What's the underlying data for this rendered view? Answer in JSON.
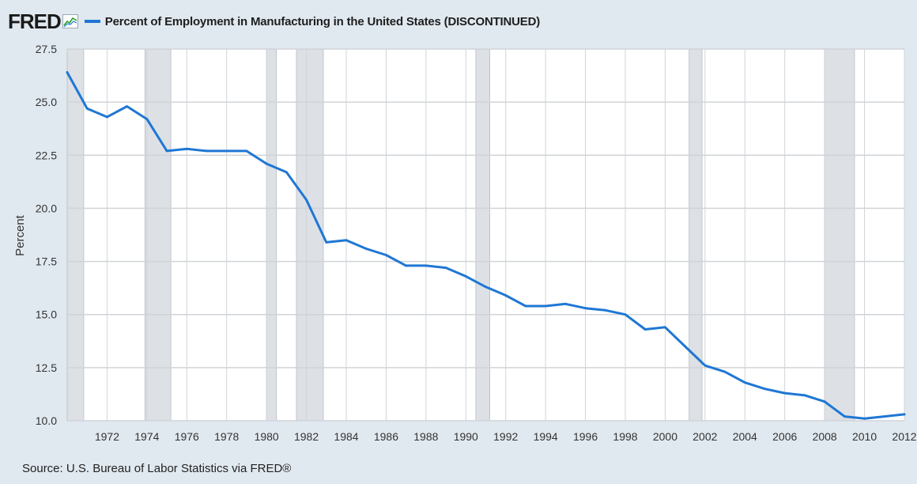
{
  "brand": {
    "logo_text": "FRED"
  },
  "source_text": "Source: U.S. Bureau of Labor Statistics via FRED®",
  "colors": {
    "series": "#1f77d4",
    "plot_bg": "#ffffff",
    "page_bg": "#e1e9f0",
    "recession": "#dde1e6",
    "grid": "#d0d4d8",
    "axis_text": "#333333"
  },
  "chart_data": {
    "type": "line",
    "title": "",
    "legend": [
      "Percent of Employment in Manufacturing in the United States (DISCONTINUED)"
    ],
    "xlabel": "",
    "ylabel": "Percent",
    "xlim": [
      1970,
      2012
    ],
    "ylim": [
      10.0,
      27.5
    ],
    "grid": true,
    "legend_position": "top-left",
    "yticks": [
      10.0,
      12.5,
      15.0,
      17.5,
      20.0,
      22.5,
      25.0,
      27.5
    ],
    "ytick_labels": [
      "10.0",
      "12.5",
      "15.0",
      "17.5",
      "20.0",
      "22.5",
      "25.0",
      "27.5"
    ],
    "xticks": [
      1972,
      1974,
      1976,
      1978,
      1980,
      1982,
      1984,
      1986,
      1988,
      1990,
      1992,
      1994,
      1996,
      1998,
      2000,
      2002,
      2004,
      2006,
      2008,
      2010,
      2012
    ],
    "xtick_labels": [
      "1972",
      "1974",
      "1976",
      "1978",
      "1980",
      "1982",
      "1984",
      "1986",
      "1988",
      "1990",
      "1992",
      "1994",
      "1996",
      "1998",
      "2000",
      "2002",
      "2004",
      "2006",
      "2008",
      "2010",
      "2012"
    ],
    "recessions": [
      [
        1970.0,
        1970.83
      ],
      [
        1973.9,
        1975.2
      ],
      [
        1980.0,
        1980.5
      ],
      [
        1981.5,
        1982.85
      ],
      [
        1990.5,
        1991.2
      ],
      [
        2001.2,
        2001.85
      ],
      [
        2008.0,
        2009.5
      ]
    ],
    "series": [
      {
        "name": "Percent of Employment in Manufacturing in the United States (DISCONTINUED)",
        "x": [
          1970,
          1971,
          1972,
          1973,
          1974,
          1975,
          1976,
          1977,
          1978,
          1979,
          1980,
          1981,
          1982,
          1983,
          1984,
          1985,
          1986,
          1987,
          1988,
          1989,
          1990,
          1991,
          1992,
          1993,
          1994,
          1995,
          1996,
          1997,
          1998,
          1999,
          2000,
          2001,
          2002,
          2003,
          2004,
          2005,
          2006,
          2007,
          2008,
          2009,
          2010,
          2011,
          2012
        ],
        "values": [
          26.4,
          24.7,
          24.3,
          24.8,
          24.2,
          22.7,
          22.8,
          22.7,
          22.7,
          22.7,
          22.1,
          21.7,
          20.4,
          18.4,
          18.5,
          18.1,
          17.8,
          17.3,
          17.3,
          17.2,
          16.8,
          16.3,
          15.9,
          15.4,
          15.4,
          15.5,
          15.3,
          15.2,
          15.0,
          14.3,
          14.4,
          13.5,
          12.6,
          12.3,
          11.8,
          11.5,
          11.3,
          11.2,
          10.9,
          10.2,
          10.1,
          10.2,
          10.3
        ]
      }
    ]
  }
}
